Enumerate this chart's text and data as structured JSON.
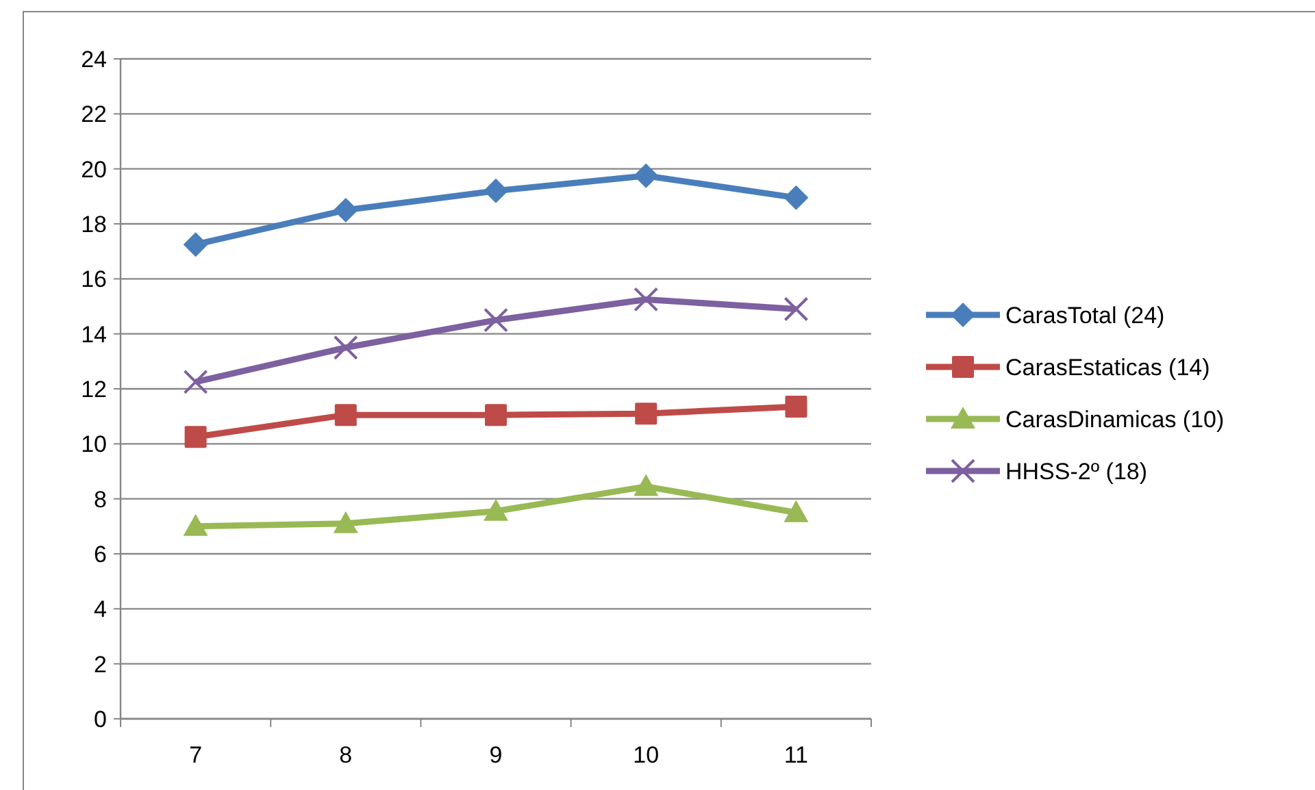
{
  "chart_data": {
    "type": "line",
    "categories": [
      "7",
      "8",
      "9",
      "10",
      "11"
    ],
    "series": [
      {
        "name": "CarasTotal (24)",
        "color": "#4a7ebb",
        "marker": "diamond",
        "values": [
          17.25,
          18.5,
          19.2,
          19.75,
          18.95
        ]
      },
      {
        "name": "CarasEstaticas (14)",
        "color": "#be4b48",
        "marker": "square",
        "values": [
          10.25,
          11.05,
          11.05,
          11.1,
          11.35
        ]
      },
      {
        "name": "CarasDinamicas (10)",
        "color": "#98b954",
        "marker": "triangle",
        "values": [
          7.0,
          7.1,
          7.55,
          8.45,
          7.5
        ]
      },
      {
        "name": "HHSS-2º (18)",
        "color": "#7d60a0",
        "marker": "cross",
        "values": [
          12.25,
          13.5,
          14.5,
          15.25,
          14.9
        ]
      }
    ],
    "ylim": [
      0,
      24
    ],
    "yticks": [
      0,
      2,
      4,
      6,
      8,
      10,
      12,
      14,
      16,
      18,
      20,
      22,
      24
    ],
    "grid": "y",
    "legend": "right"
  }
}
